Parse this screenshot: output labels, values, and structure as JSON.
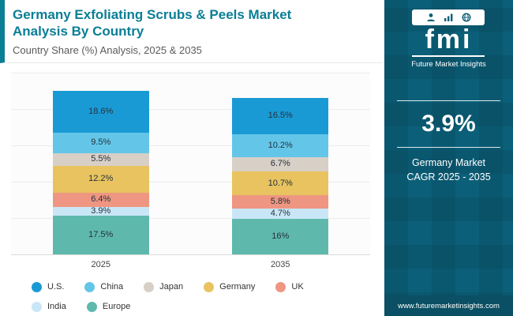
{
  "header": {
    "title": "Germany Exfoliating Scrubs & Peels Market Analysis By Country",
    "subtitle": "Country Share (%) Analysis, 2025 & 2035"
  },
  "chart_data": {
    "type": "bar",
    "subtype": "stacked-column",
    "categories": [
      "2025",
      "2035"
    ],
    "series": [
      {
        "name": "U.S.",
        "color": "#1a9ad5",
        "values": [
          18.6,
          16.5
        ]
      },
      {
        "name": "China",
        "color": "#63c6e9",
        "values": [
          9.5,
          10.2
        ]
      },
      {
        "name": "Japan",
        "color": "#d8cfc7",
        "values": [
          5.5,
          6.7
        ]
      },
      {
        "name": "Germany",
        "color": "#e8c35f",
        "values": [
          12.2,
          10.7
        ]
      },
      {
        "name": "UK",
        "color": "#ee9681",
        "values": [
          6.4,
          5.8
        ]
      },
      {
        "name": "India",
        "color": "#c9e6f6",
        "values": [
          3.9,
          4.7
        ]
      },
      {
        "name": "Europe",
        "color": "#5eb9ac",
        "values": [
          17.5,
          16
        ]
      }
    ],
    "value_labels": [
      [
        "18.6%",
        "9.5%",
        "5.5%",
        "12.2%",
        "6.4%",
        "3.9%",
        "17.5%"
      ],
      [
        "16.5%",
        "10.2%",
        "6.7%",
        "10.7%",
        "5.8%",
        "4.7%",
        "16%"
      ]
    ],
    "title": "Germany Exfoliating Scrubs & Peels Market Analysis By Country",
    "xlabel": "",
    "ylabel": "Country Share (%)",
    "legend_position": "bottom",
    "grid": true
  },
  "sidebar": {
    "brand": "fmi",
    "brand_sub": "Future Market Insights",
    "stat_value": "3.9%",
    "stat_label": "Germany Market CAGR 2025 - 2035",
    "website": "www.futuremarketinsights.com"
  }
}
